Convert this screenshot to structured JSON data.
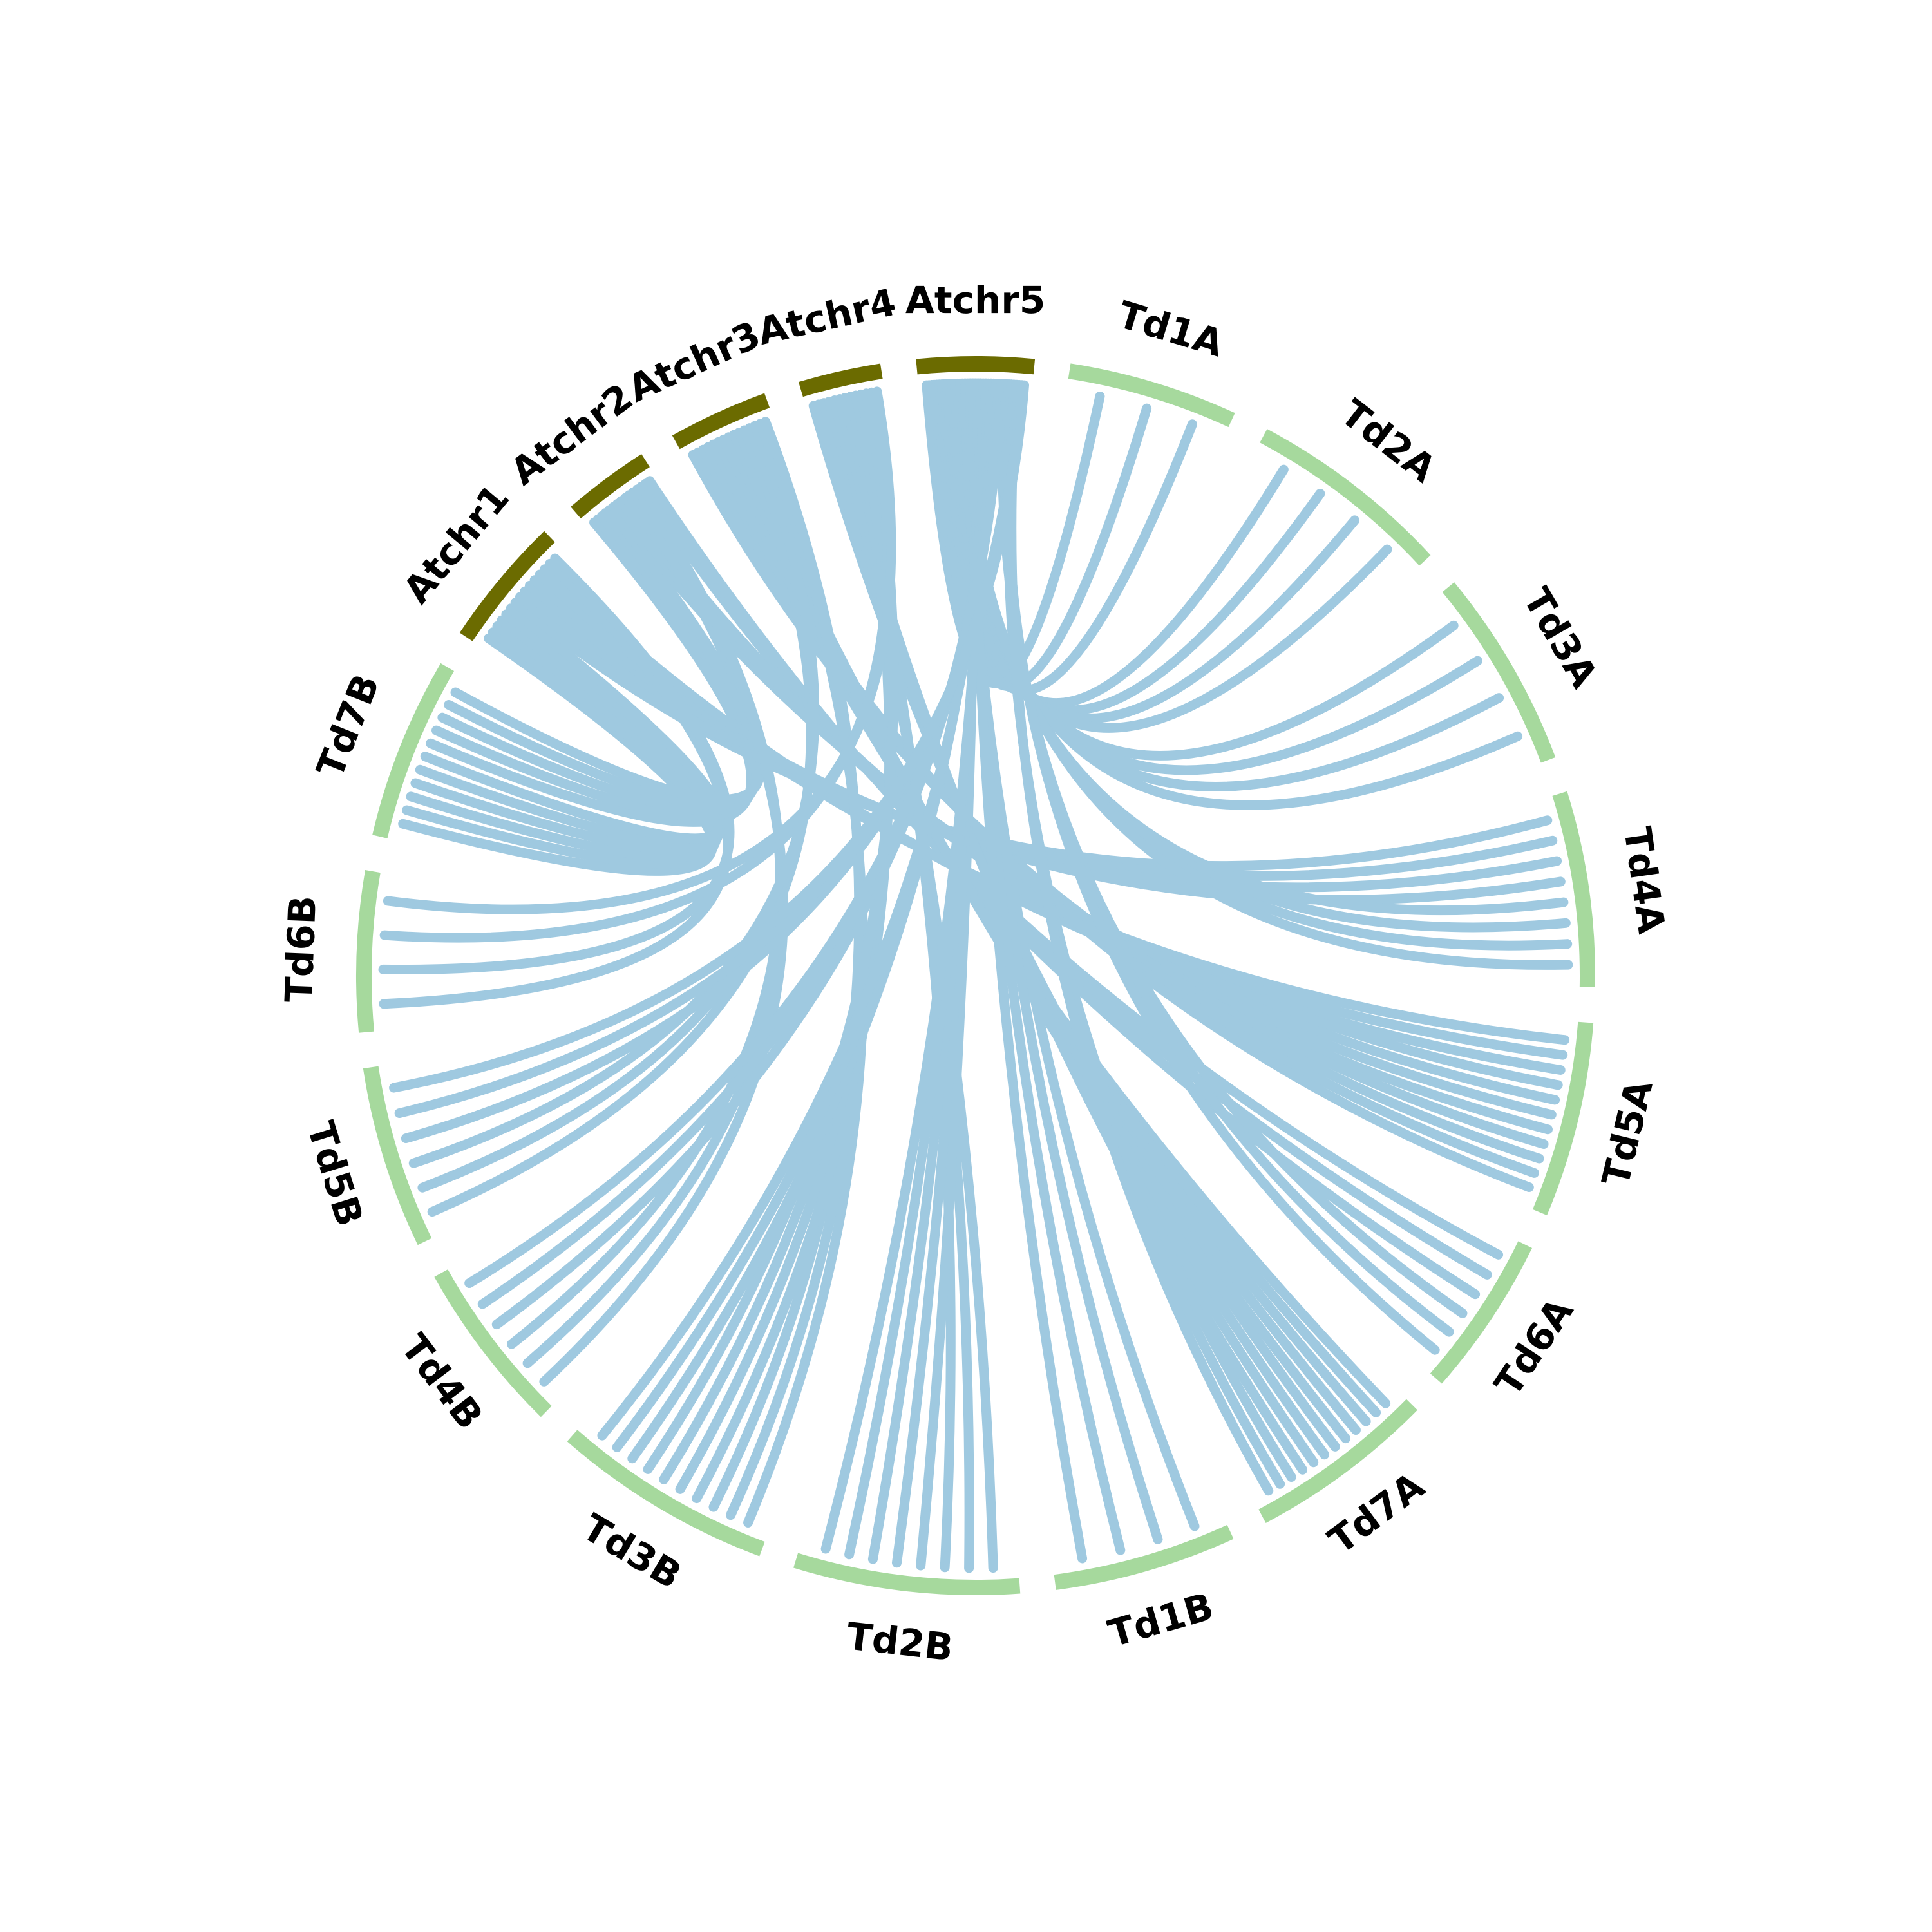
{
  "colors": {
    "arabidopsis": "#6b6b00",
    "wheat": "#a6d99d",
    "link": "#9fc9e0",
    "background": "#ffffff"
  },
  "chromosomes": [
    {
      "name": "Atchr1",
      "group": "arabidopsis",
      "size": 30
    },
    {
      "name": "Atchr2",
      "group": "arabidopsis",
      "size": 20
    },
    {
      "name": "Atchr3",
      "group": "arabidopsis",
      "size": 23
    },
    {
      "name": "Atchr4",
      "group": "arabidopsis",
      "size": 19
    },
    {
      "name": "Atchr5",
      "group": "arabidopsis",
      "size": 27
    },
    {
      "name": "Td1A",
      "group": "wheat",
      "size": 39
    },
    {
      "name": "Td2A",
      "group": "wheat",
      "size": 47
    },
    {
      "name": "Td3A",
      "group": "wheat",
      "size": 46
    },
    {
      "name": "Td4A",
      "group": "wheat",
      "size": 45
    },
    {
      "name": "Td5A",
      "group": "wheat",
      "size": 45
    },
    {
      "name": "Td6A",
      "group": "wheat",
      "size": 37
    },
    {
      "name": "Td7A",
      "group": "wheat",
      "size": 43
    },
    {
      "name": "Td1B",
      "group": "wheat",
      "size": 42
    },
    {
      "name": "Td2B",
      "group": "wheat",
      "size": 52
    },
    {
      "name": "Td3B",
      "group": "wheat",
      "size": 51
    },
    {
      "name": "Td4B",
      "group": "wheat",
      "size": 40
    },
    {
      "name": "Td5B",
      "group": "wheat",
      "size": 42
    },
    {
      "name": "Td6B",
      "group": "wheat",
      "size": 37
    },
    {
      "name": "Td7B",
      "group": "wheat",
      "size": 42
    }
  ],
  "links": [
    {
      "source": "Atchr1",
      "target": "Td7B",
      "count": 6
    },
    {
      "source": "Atchr1",
      "target": "Td4A",
      "count": 4
    },
    {
      "source": "Atchr1",
      "target": "Td5A",
      "count": 3
    },
    {
      "source": "Atchr1",
      "target": "Td6B",
      "count": 2
    },
    {
      "source": "Atchr2",
      "target": "Td7B",
      "count": 5
    },
    {
      "source": "Atchr2",
      "target": "Td5A",
      "count": 4
    },
    {
      "source": "Atchr2",
      "target": "Td4B",
      "count": 3
    },
    {
      "source": "Atchr2",
      "target": "Td6A",
      "count": 3
    },
    {
      "source": "Atchr3",
      "target": "Td5A",
      "count": 4
    },
    {
      "source": "Atchr3",
      "target": "Td7A",
      "count": 5
    },
    {
      "source": "Atchr3",
      "target": "Td5B",
      "count": 3
    },
    {
      "source": "Atchr3",
      "target": "Td3B",
      "count": 3
    },
    {
      "source": "Atchr4",
      "target": "Td7A",
      "count": 4
    },
    {
      "source": "Atchr4",
      "target": "Td2B",
      "count": 3
    },
    {
      "source": "Atchr4",
      "target": "Td3B",
      "count": 4
    },
    {
      "source": "Atchr4",
      "target": "Td6B",
      "count": 2
    },
    {
      "source": "Atchr5",
      "target": "Td1A",
      "count": 3
    },
    {
      "source": "Atchr5",
      "target": "Td2A",
      "count": 4
    },
    {
      "source": "Atchr5",
      "target": "Td3A",
      "count": 4
    },
    {
      "source": "Atchr5",
      "target": "Td4A",
      "count": 4
    },
    {
      "source": "Atchr5",
      "target": "Td1B",
      "count": 4
    },
    {
      "source": "Atchr5",
      "target": "Td2B",
      "count": 5
    },
    {
      "source": "Atchr5",
      "target": "Td3B",
      "count": 3
    },
    {
      "source": "Atchr5",
      "target": "Td4B",
      "count": 3
    },
    {
      "source": "Atchr5",
      "target": "Td6A",
      "count": 3
    },
    {
      "source": "Atchr5",
      "target": "Td7A",
      "count": 3
    },
    {
      "source": "Atchr5",
      "target": "Td5B",
      "count": 3
    }
  ]
}
